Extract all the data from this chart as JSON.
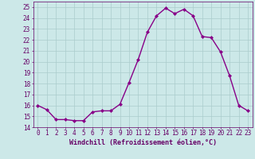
{
  "x": [
    0,
    1,
    2,
    3,
    4,
    5,
    6,
    7,
    8,
    9,
    10,
    11,
    12,
    13,
    14,
    15,
    16,
    17,
    18,
    19,
    20,
    21,
    22,
    23
  ],
  "y": [
    16.0,
    15.6,
    14.7,
    14.7,
    14.6,
    14.6,
    15.4,
    15.5,
    15.5,
    16.1,
    18.1,
    20.2,
    22.7,
    24.2,
    24.9,
    24.4,
    24.8,
    24.2,
    22.3,
    22.2,
    20.9,
    18.7,
    16.0,
    15.5
  ],
  "line_color": "#880088",
  "marker": "D",
  "markersize": 2.0,
  "linewidth": 1.0,
  "bg_color": "#cce8e8",
  "grid_color": "#aacccc",
  "xlabel": "Windchill (Refroidissement éolien,°C)",
  "xlabel_fontsize": 6.0,
  "ylim": [
    14,
    25.5
  ],
  "xlim": [
    -0.5,
    23.5
  ],
  "yticks": [
    14,
    15,
    16,
    17,
    18,
    19,
    20,
    21,
    22,
    23,
    24,
    25
  ],
  "xticks": [
    0,
    1,
    2,
    3,
    4,
    5,
    6,
    7,
    8,
    9,
    10,
    11,
    12,
    13,
    14,
    15,
    16,
    17,
    18,
    19,
    20,
    21,
    22,
    23
  ],
  "tick_fontsize": 5.5,
  "tick_color": "#660066"
}
